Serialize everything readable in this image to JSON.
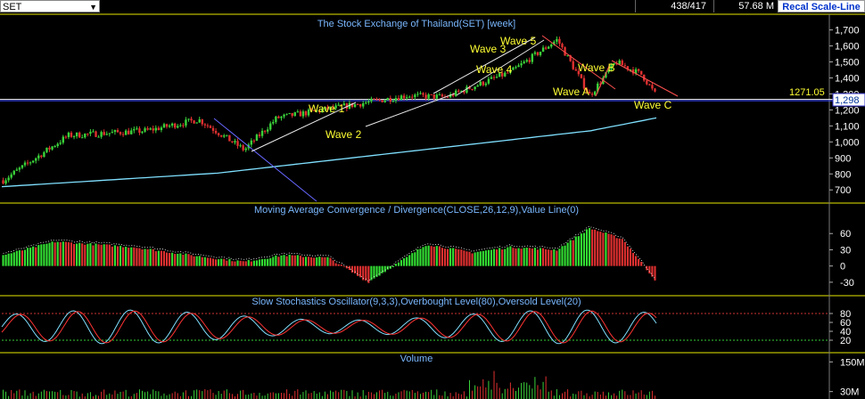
{
  "toolbar": {
    "symbol": "SET",
    "bar_count": "438/417",
    "percent": "57.68 M",
    "recal_button": "Recal Scale-Line"
  },
  "colors": {
    "background": "#000000",
    "panel_border": "#e6e600",
    "up_candle": "#3ad13a",
    "down_candle": "#e03030",
    "long_ma": "#7fe0ff",
    "title_text": "#7ab8ff",
    "wave_text": "#ffff33",
    "trendline": "#ffffff",
    "macd_up": "#33e033",
    "macd_down": "#e03030"
  },
  "chart_data": [
    {
      "type": "candlestick",
      "title": "The Stock Exchange of Thailand(SET) [week]",
      "ylim": [
        640,
        1720
      ],
      "yticks": [
        700,
        800,
        900,
        1000,
        1100,
        1200,
        1300,
        1400,
        1500,
        1600,
        1700
      ],
      "ytick_labels": [
        "700",
        "800",
        "900",
        "1,000",
        "1,100",
        "1,200",
        "1,300",
        "1,400",
        "1,500",
        "1,600",
        "1,700"
      ],
      "x_index": [
        0,
        0.1,
        0.22,
        0.3,
        0.37,
        0.42,
        0.62,
        0.68,
        0.78,
        0.85,
        0.9,
        0.94,
        0.98,
        1.0
      ],
      "close": [
        760,
        1040,
        1070,
        1140,
        950,
        1150,
        1290,
        1280,
        1440,
        1640,
        1290,
        1500,
        1420,
        1300
      ],
      "long_ma": [
        720,
        805,
        1070,
        1150
      ],
      "last_price_label": "1,298",
      "horizontal_line_value": 1271.05,
      "horizontal_line_label": "1271.05",
      "annotations": [
        "Wave 1",
        "Wave 2",
        "Wave 3",
        "Wave 4",
        "Wave 5",
        "Wave A",
        "Wave B",
        "Wave C"
      ]
    },
    {
      "type": "bar",
      "title": "Moving Average Convergence / Divergence(CLOSE,26,12,9),Value Line(0)",
      "ylim": [
        -45,
        90
      ],
      "yticks": [
        -30,
        0,
        30,
        60
      ],
      "ytick_labels": [
        "-30",
        "0",
        "30",
        "60"
      ],
      "profile_index": [
        0,
        0.08,
        0.2,
        0.3,
        0.37,
        0.43,
        0.5,
        0.56,
        0.65,
        0.72,
        0.78,
        0.85,
        0.9,
        0.95,
        1.0
      ],
      "profile_value": [
        20,
        45,
        35,
        18,
        8,
        20,
        15,
        -30,
        40,
        25,
        35,
        30,
        70,
        50,
        -25
      ]
    },
    {
      "type": "line",
      "title": "Slow Stochastics Oscillator(9,3,3),Overbought Level(80),Oversold Level(20)",
      "ylim": [
        0,
        100
      ],
      "yticks": [
        20,
        40,
        60,
        80
      ],
      "ytick_labels": [
        "20",
        "40",
        "60",
        "80"
      ],
      "overbought": 80,
      "oversold": 20
    },
    {
      "type": "bar",
      "title": "Volume",
      "yticks": [
        30,
        150
      ],
      "ytick_labels": [
        "30M",
        "150M"
      ]
    }
  ]
}
